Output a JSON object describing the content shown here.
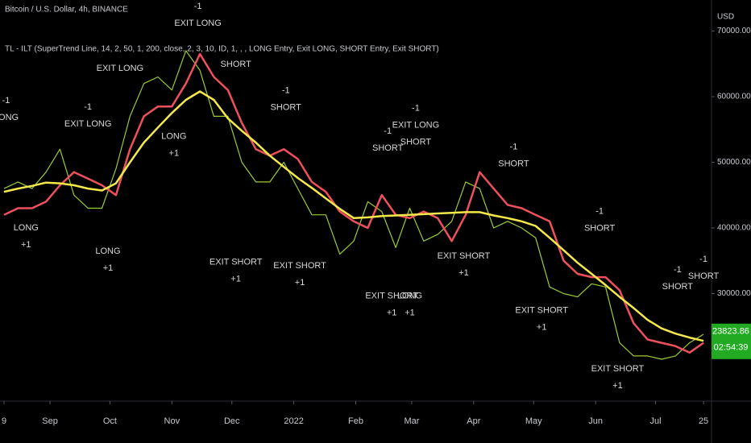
{
  "chart_data": {
    "type": "line",
    "title": "Bitcoin / U.S. Dollar, 4h, BINANCE",
    "subtitle": "TL - ILT (SuperTrend Line, 14, 2, 50, 1, 200, close, 2, 3, 10, ID, 1, , , LONG Entry, Exit LONG, SHORT Entry, Exit SHORT)",
    "y_axis_label": "USD",
    "x": [
      0,
      7,
      14,
      21,
      28,
      35,
      42,
      49,
      56,
      63,
      70,
      77,
      84,
      91,
      98,
      105,
      112,
      119,
      126,
      133,
      140,
      147,
      154,
      161,
      168,
      175,
      182,
      189,
      196,
      203,
      210,
      217,
      224,
      231,
      238,
      245,
      252,
      259,
      266,
      273,
      280,
      287,
      294,
      301,
      308,
      315,
      322,
      329,
      336,
      343,
      350
    ],
    "series": [
      {
        "color": "#9acd32",
        "values": [
          46000,
          47000,
          46000,
          48500,
          52000,
          45000,
          43000,
          43000,
          49000,
          57000,
          62000,
          63000,
          61000,
          67000,
          64000,
          57000,
          57000,
          50000,
          47000,
          47000,
          50000,
          46000,
          42000,
          42000,
          36000,
          38000,
          44000,
          42500,
          37000,
          43000,
          38000,
          39000,
          41000,
          47000,
          46000,
          40000,
          41000,
          40000,
          38500,
          31000,
          30000,
          29500,
          31500,
          31000,
          22500,
          20500,
          20500,
          20000,
          20500,
          22500,
          23800
        ]
      },
      {
        "color": "#f0505a",
        "values": [
          42000,
          43000,
          43000,
          44000,
          46500,
          48500,
          47500,
          46500,
          45000,
          52000,
          57000,
          58500,
          58500,
          62000,
          66500,
          63000,
          61000,
          56000,
          52000,
          51000,
          52000,
          50500,
          47000,
          45500,
          42500,
          41000,
          40000,
          45000,
          42000,
          41500,
          42500,
          41500,
          38000,
          42000,
          48500,
          46000,
          43500,
          43000,
          42000,
          41000,
          35000,
          33000,
          32500,
          32500,
          30500,
          25500,
          23000,
          22500,
          22000,
          21000,
          22500
        ]
      },
      {
        "color": "#f5e94a",
        "values": [
          45500,
          46000,
          46400,
          46900,
          46800,
          46500,
          46000,
          45700,
          46800,
          50000,
          53000,
          55300,
          57500,
          59500,
          60800,
          59500,
          56700,
          54800,
          53000,
          51000,
          49300,
          47600,
          46100,
          44500,
          42900,
          41500,
          41600,
          41800,
          41900,
          42000,
          42100,
          42200,
          42300,
          42400,
          42400,
          41900,
          41500,
          41000,
          40300,
          38500,
          36600,
          34700,
          33000,
          31300,
          29500,
          27800,
          26000,
          24700,
          23900,
          23300,
          22800
        ]
      }
    ],
    "xlim": [
      -2.016,
      353.6
    ],
    "ylim": [
      13740,
      74720
    ],
    "xticks": [
      {
        "value": 0,
        "label": "9"
      },
      {
        "value": 23,
        "label": "Sep"
      },
      {
        "value": 53,
        "label": "Oct"
      },
      {
        "value": 84,
        "label": "Nov"
      },
      {
        "value": 114,
        "label": "Dec"
      },
      {
        "value": 145,
        "label": "2022"
      },
      {
        "value": 176,
        "label": "Feb"
      },
      {
        "value": 204,
        "label": "Mar"
      },
      {
        "value": 235,
        "label": "Apr"
      },
      {
        "value": 265,
        "label": "May"
      },
      {
        "value": 296,
        "label": "Jun"
      },
      {
        "value": 326,
        "label": "Jul"
      },
      {
        "value": 350,
        "label": "25"
      }
    ],
    "yticks": [
      {
        "value": 30000,
        "label": "30000.00"
      },
      {
        "value": 40000,
        "label": "40000.00"
      },
      {
        "value": 50000,
        "label": "50000.00"
      },
      {
        "value": 60000,
        "label": "60000.00"
      },
      {
        "value": 70000,
        "label": "70000.00"
      }
    ],
    "grid": false,
    "last_price": 23823.86,
    "countdown": "02:54:39",
    "annotations": [
      {
        "lines": [
          "-1",
          "LONG"
        ],
        "x": 1,
        "y": 59400
      },
      {
        "lines": [
          "-1",
          "EXIT LONG"
        ],
        "x": 42,
        "y": 58400
      },
      {
        "lines": [
          "LONG",
          "+1"
        ],
        "x": 11,
        "y": 40000
      },
      {
        "lines": [
          "LONG",
          "+1"
        ],
        "x": 52,
        "y": 36400
      },
      {
        "lines": [
          "EXIT LONG"
        ],
        "x": 58,
        "y": 64300
      },
      {
        "lines": [
          "LONG",
          "+1"
        ],
        "x": 85,
        "y": 53900
      },
      {
        "lines": [
          "-1",
          "EXIT LONG"
        ],
        "x": 97,
        "y": 73700
      },
      {
        "lines": [
          "SHORT"
        ],
        "x": 116,
        "y": 64900
      },
      {
        "lines": [
          "-1",
          "SHORT"
        ],
        "x": 141,
        "y": 60900
      },
      {
        "lines": [
          "EXIT SHORT",
          "+1"
        ],
        "x": 116,
        "y": 34800
      },
      {
        "lines": [
          "EXIT SHORT",
          "+1"
        ],
        "x": 148,
        "y": 34200
      },
      {
        "lines": [
          "-1",
          "SHORT"
        ],
        "x": 192,
        "y": 54700
      },
      {
        "lines": [
          "-1",
          "EXIT LONG",
          "SHORT"
        ],
        "x": 206,
        "y": 58200
      },
      {
        "lines": [
          "EXIT SHORT",
          "+1"
        ],
        "x": 194,
        "y": 29600
      },
      {
        "lines": [
          "LONG",
          "+1"
        ],
        "x": 203,
        "y": 29600
      },
      {
        "lines": [
          "EXIT SHORT",
          "+1"
        ],
        "x": 230,
        "y": 35700
      },
      {
        "lines": [
          "-1",
          "SHORT"
        ],
        "x": 255,
        "y": 52300
      },
      {
        "lines": [
          "-1",
          "SHORT"
        ],
        "x": 298,
        "y": 42500
      },
      {
        "lines": [
          "EXIT SHORT",
          "+1"
        ],
        "x": 269,
        "y": 27400
      },
      {
        "lines": [
          "EXIT SHORT",
          "+1"
        ],
        "x": 307,
        "y": 18500
      },
      {
        "lines": [
          "-1",
          "SHORT"
        ],
        "x": 337,
        "y": 33600
      },
      {
        "lines": [
          "-1",
          "SHORT"
        ],
        "x": 350,
        "y": 35200
      }
    ]
  }
}
